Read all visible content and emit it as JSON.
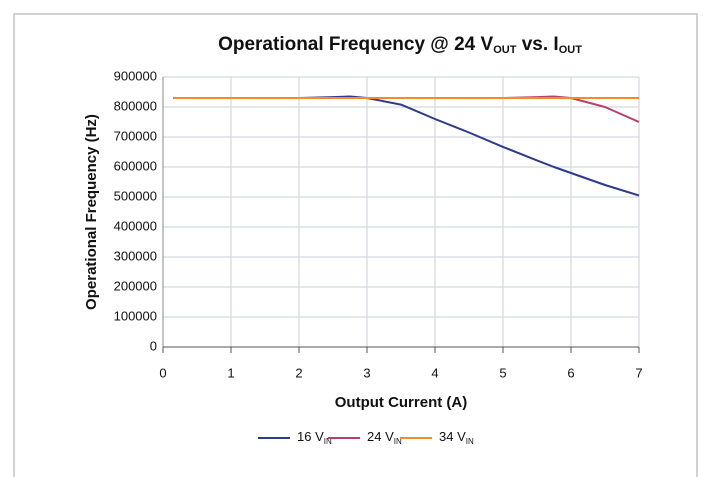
{
  "chart_data": {
    "type": "line",
    "title": [
      "Operational Frequency @ 24 V",
      "OUT",
      " vs. I",
      "OUT"
    ],
    "x_label": "Output Current (A)",
    "y_label": "Operational Frequency (Hz)",
    "x": [
      0.15,
      0.5,
      1,
      1.5,
      2,
      2.5,
      2.75,
      3,
      3.5,
      4,
      4.5,
      5,
      5.5,
      5.75,
      6,
      6.5,
      7
    ],
    "series": [
      {
        "name": [
          "16 V",
          "IN"
        ],
        "color": "#2e3a8c",
        "values": [
          830000,
          830000,
          830000,
          830000,
          830000,
          833000,
          835000,
          830000,
          808000,
          760000,
          715000,
          667000,
          622000,
          600000,
          580000,
          540000,
          505000
        ]
      },
      {
        "name": [
          "24 V",
          "IN"
        ],
        "color": "#b5426e",
        "values": [
          830000,
          830000,
          830000,
          830000,
          830000,
          830000,
          830000,
          830000,
          830000,
          830000,
          830000,
          830000,
          833000,
          835000,
          830000,
          800000,
          750000
        ]
      },
      {
        "name": [
          "34 V",
          "IN"
        ],
        "color": "#f28c28",
        "values": [
          830000,
          830000,
          830000,
          830000,
          830000,
          830000,
          830000,
          830000,
          830000,
          830000,
          830000,
          830000,
          830000,
          830000,
          830000,
          830000,
          830000
        ]
      }
    ],
    "xlim": [
      0,
      7
    ],
    "xticks": [
      0,
      1,
      2,
      3,
      4,
      5,
      6,
      7
    ],
    "ylim": [
      0,
      900000
    ],
    "yticks": [
      0,
      100000,
      200000,
      300000,
      400000,
      500000,
      600000,
      700000,
      800000,
      900000
    ],
    "grid": true,
    "legend": "bottom"
  }
}
